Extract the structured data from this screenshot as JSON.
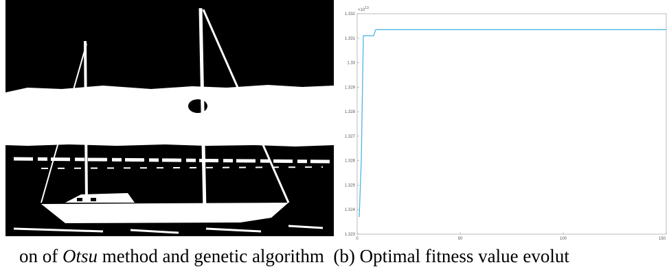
{
  "figure": {
    "caption": {
      "prefix": "on of ",
      "method_italic": "Otsu",
      "after_method": " method and genetic algorithm  (b) Optimal fitness value evolut"
    }
  },
  "segmented_image": {
    "description_colors": {
      "background": "#000000",
      "foreground": "#ffffff"
    }
  },
  "chart_data": {
    "type": "line",
    "title": "",
    "xlabel": "",
    "ylabel": "",
    "y_exponent_label": "×10",
    "y_exponent_power": "13",
    "xlim": [
      0,
      150
    ],
    "ylim": [
      1.323,
      1.332
    ],
    "x_ticks": [
      "0",
      "50",
      "100",
      "150"
    ],
    "y_ticks": [
      "1.323",
      "1.324",
      "1.325",
      "1.326",
      "1.327",
      "1.328",
      "1.329",
      "1.33",
      "1.331",
      "1.332"
    ],
    "grid": false,
    "series": [
      {
        "color": "#4fb3e6",
        "x": [
          1,
          2,
          3,
          4,
          8,
          9,
          150
        ],
        "y": [
          1.3237,
          1.326,
          1.3311,
          1.3311,
          1.3311,
          1.33135,
          1.33135
        ]
      }
    ]
  }
}
